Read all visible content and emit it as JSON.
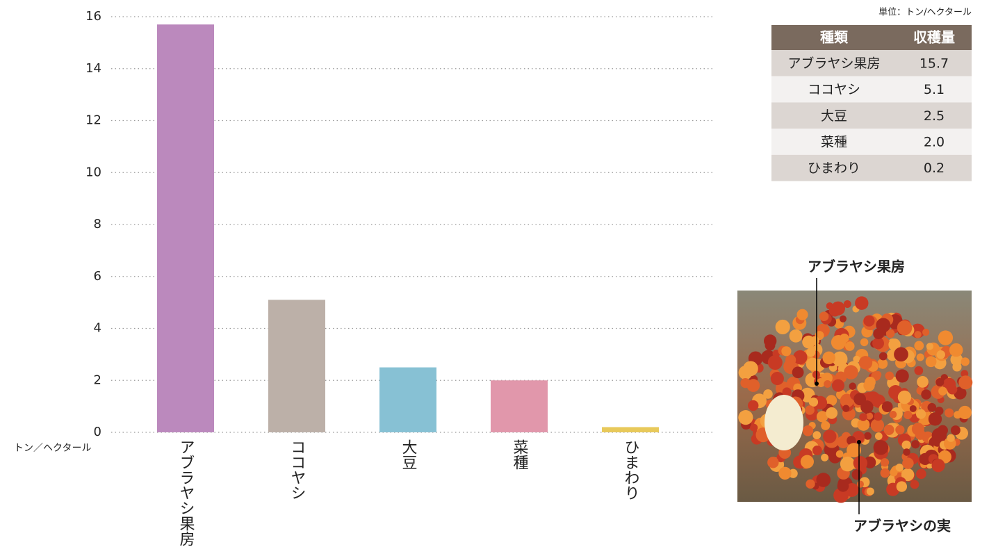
{
  "chart_data": {
    "type": "bar",
    "categories": [
      "アブラヤシ果房",
      "ココヤシ",
      "大豆",
      "菜種",
      "ひまわり"
    ],
    "values": [
      15.7,
      5.1,
      2.5,
      2.0,
      0.2
    ],
    "colors": [
      "#bb89bd",
      "#bcb0a8",
      "#87c1d4",
      "#e197ab",
      "#e8c95a"
    ],
    "y_label": "トン／ヘクタール",
    "ylim": [
      0,
      16
    ],
    "yticks": [
      0,
      2,
      4,
      6,
      8,
      10,
      12,
      14,
      16
    ],
    "grid": true
  },
  "table": {
    "unit": "単位：トン/ヘクタール",
    "header": [
      "種類",
      "収穫量"
    ],
    "rows": [
      [
        "アブラヤシ果房",
        "15.7"
      ],
      [
        "ココヤシ",
        "5.1"
      ],
      [
        "大豆",
        "2.5"
      ],
      [
        "菜種",
        "2.0"
      ],
      [
        "ひまわり",
        "0.2"
      ]
    ]
  },
  "photo": {
    "labels": [
      "アブラヤシ果房",
      "アブラヤシの実"
    ]
  }
}
